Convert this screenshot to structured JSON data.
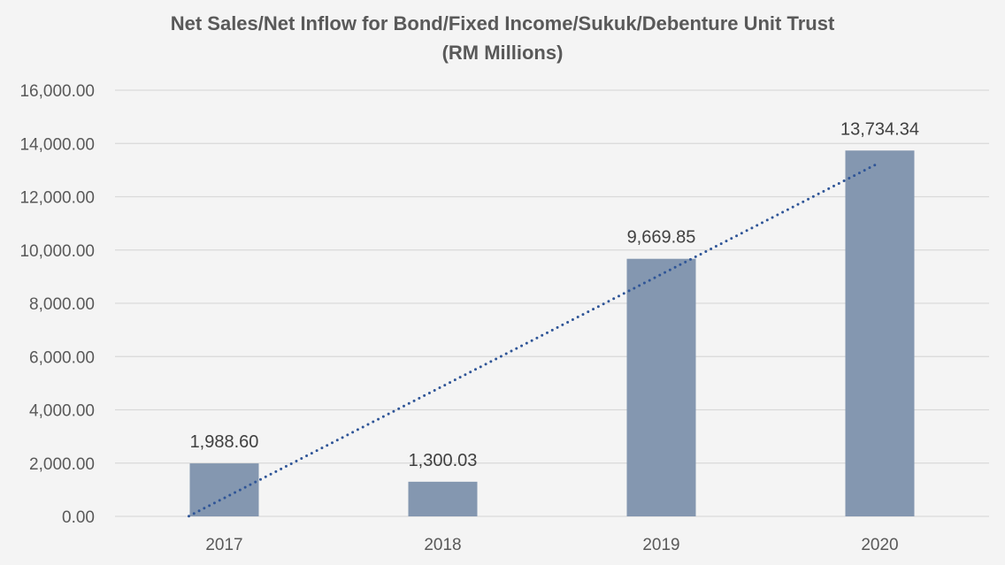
{
  "chart_data": {
    "type": "bar",
    "title_line1": "Net Sales/Net Inflow for Bond/Fixed Income/Sukuk/Debenture Unit Trust",
    "title_line2": "(RM Millions)",
    "categories": [
      "2017",
      "2018",
      "2019",
      "2020"
    ],
    "values": [
      1988.6,
      1300.03,
      9669.85,
      13734.34
    ],
    "data_labels": [
      "1,988.60",
      "1,300.03",
      "9,669.85",
      "13,734.34"
    ],
    "ylim": [
      0,
      16000
    ],
    "y_ticks": [
      0,
      2000,
      4000,
      6000,
      8000,
      10000,
      12000,
      14000,
      16000
    ],
    "y_tick_labels": [
      "0.00",
      "2,000.00",
      "4,000.00",
      "6,000.00",
      "8,000.00",
      "10,000.00",
      "12,000.00",
      "14,000.00",
      "16,000.00"
    ],
    "trendline": {
      "type": "linear",
      "style": "dotted",
      "start_value": 10,
      "end_value": 13200
    },
    "grid": true,
    "legend": "none",
    "colors": {
      "bar": "#8497b0",
      "trendline": "#2f5597",
      "grid": "#d9d9d9",
      "background": "#f4f4f4"
    }
  }
}
